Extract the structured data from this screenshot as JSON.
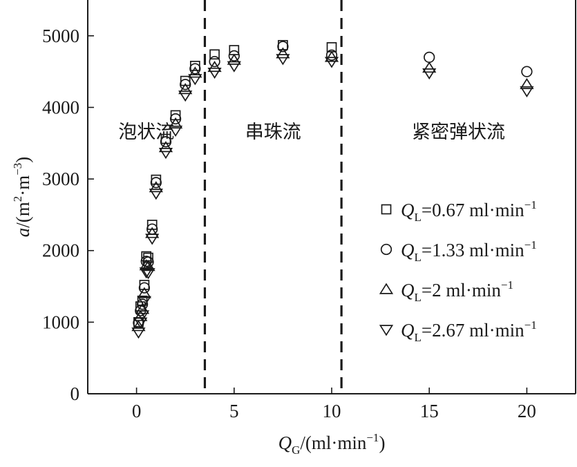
{
  "chart_data": {
    "type": "scatter",
    "xlabel": {
      "var": "Q",
      "sub": "G",
      "unit": "/(ml·min",
      "sup": "−1",
      "close": ")"
    },
    "ylabel": {
      "var": "a",
      "unit": "/(m",
      "sup1": "2",
      "mid": "·m",
      "sup2": "−3",
      "close": ")"
    },
    "xlim": [
      -2.5,
      22.5
    ],
    "ylim": [
      0,
      5500
    ],
    "xticks": [
      0,
      5,
      10,
      15,
      20
    ],
    "yticks": [
      0,
      1000,
      2000,
      3000,
      4000,
      5000
    ],
    "grid": false,
    "legend_placement": "right",
    "regime_boundaries": [
      3.5,
      10.5
    ],
    "regions": [
      {
        "label": "泡状流",
        "x": 0.5
      },
      {
        "label": "串珠流",
        "x": 7.0
      },
      {
        "label": "紧密弹状流",
        "x": 16.5
      }
    ],
    "series": [
      {
        "name": "Q_L=0.67 ml·min^-1",
        "legend": {
          "var": "Q",
          "sub": "L",
          "value": "=0.67 ml·min",
          "sup": "−1"
        },
        "marker": "square",
        "x": [
          0.1,
          0.2,
          0.3,
          0.4,
          0.5,
          0.6,
          0.8,
          1.0,
          1.5,
          2.0,
          2.5,
          3.0,
          4.0,
          5.0,
          7.5,
          10.0
        ],
        "y": [
          1000,
          1220,
          1300,
          1520,
          1920,
          1900,
          2360,
          2990,
          3560,
          3890,
          4370,
          4580,
          4740,
          4800,
          4870,
          4840
        ]
      },
      {
        "name": "Q_L=1.33 ml·min^-1",
        "legend": {
          "var": "Q",
          "sub": "L",
          "value": "=1.33 ml·min",
          "sup": "−1"
        },
        "marker": "circle",
        "x": [
          0.1,
          0.2,
          0.3,
          0.4,
          0.5,
          0.6,
          0.8,
          1.0,
          1.5,
          2.0,
          2.5,
          3.0,
          4.0,
          5.0,
          7.5,
          10.0,
          15.0,
          20.0
        ],
        "y": [
          990,
          1160,
          1250,
          1480,
          1850,
          1840,
          2300,
          2950,
          3520,
          3840,
          4320,
          4540,
          4640,
          4720,
          4850,
          4730,
          4700,
          4500
        ]
      },
      {
        "name": "Q_L=2 ml·min^-1",
        "legend": {
          "var": "Q",
          "sub": "L",
          "value": "=2 ml·min",
          "sup": "−1"
        },
        "marker": "triangle-up",
        "x": [
          0.1,
          0.2,
          0.3,
          0.4,
          0.5,
          0.6,
          0.8,
          1.0,
          1.5,
          2.0,
          2.5,
          3.0,
          4.0,
          5.0,
          7.5,
          10.0,
          15.0,
          20.0
        ],
        "y": [
          940,
          1080,
          1180,
          1400,
          1790,
          1780,
          2240,
          2880,
          3440,
          3770,
          4250,
          4480,
          4560,
          4660,
          4750,
          4700,
          4550,
          4320
        ]
      },
      {
        "name": "Q_L=2.67 ml·min^-1",
        "legend": {
          "var": "Q",
          "sub": "L",
          "value": "=2.67 ml·min",
          "sup": "−1"
        },
        "marker": "triangle-down",
        "x": [
          0.1,
          0.2,
          0.3,
          0.4,
          0.5,
          0.6,
          0.8,
          1.0,
          1.5,
          2.0,
          2.5,
          3.0,
          4.0,
          5.0,
          7.5,
          10.0,
          15.0,
          20.0
        ],
        "y": [
          860,
          1000,
          1100,
          1300,
          1700,
          1690,
          2170,
          2800,
          3370,
          3680,
          4170,
          4400,
          4490,
          4580,
          4680,
          4640,
          4480,
          4230
        ]
      }
    ]
  }
}
